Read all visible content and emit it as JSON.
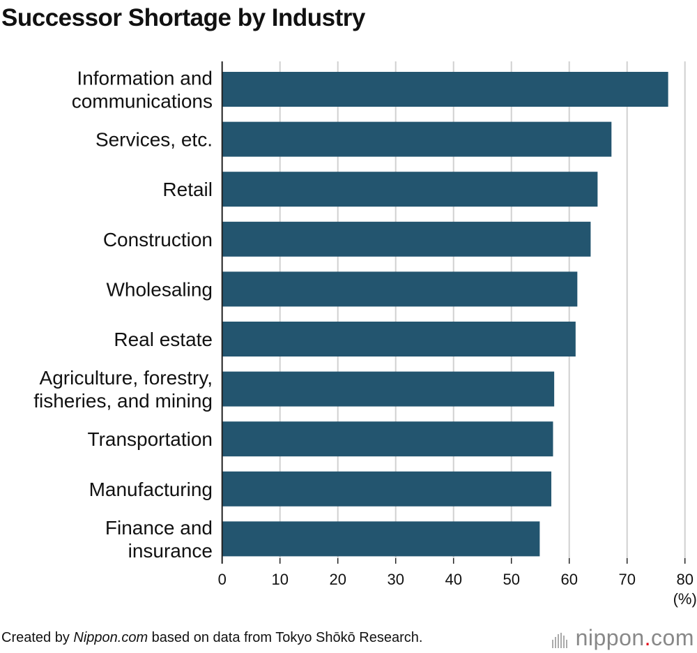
{
  "chart_data": {
    "type": "bar",
    "orientation": "horizontal",
    "title": "Successor Shortage by Industry",
    "categories": [
      "Information and communications",
      "Services, etc.",
      "Retail",
      "Construction",
      "Wholesaling",
      "Real estate",
      "Agriculture, forestry, fisheries, and mining",
      "Transportation",
      "Manufacturing",
      "Finance and insurance"
    ],
    "category_lines": [
      [
        "Information and",
        "communications"
      ],
      [
        "Services, etc."
      ],
      [
        "Retail"
      ],
      [
        "Construction"
      ],
      [
        "Wholesaling"
      ],
      [
        "Real estate"
      ],
      [
        "Agriculture, forestry,",
        "fisheries, and mining"
      ],
      [
        "Transportation"
      ],
      [
        "Manufacturing"
      ],
      [
        "Finance and",
        "insurance"
      ]
    ],
    "values": [
      77.1,
      67.3,
      64.9,
      63.7,
      61.4,
      61.1,
      57.4,
      57.2,
      56.9,
      54.9
    ],
    "xlim": [
      0,
      80
    ],
    "xticks": [
      "0",
      "10",
      "20",
      "30",
      "40",
      "50",
      "60",
      "70",
      "80"
    ],
    "xunit": "(%)",
    "grid": true,
    "bar_color": "#23556f",
    "grid_color": "#d0d0d0"
  },
  "footer": {
    "prefix": "Created by ",
    "source_site": "Nippon.com",
    "suffix": " based on data from Tokyo Shōkō Research."
  },
  "logo": {
    "text": "nippon",
    "dot": ".",
    "tld": "com"
  }
}
